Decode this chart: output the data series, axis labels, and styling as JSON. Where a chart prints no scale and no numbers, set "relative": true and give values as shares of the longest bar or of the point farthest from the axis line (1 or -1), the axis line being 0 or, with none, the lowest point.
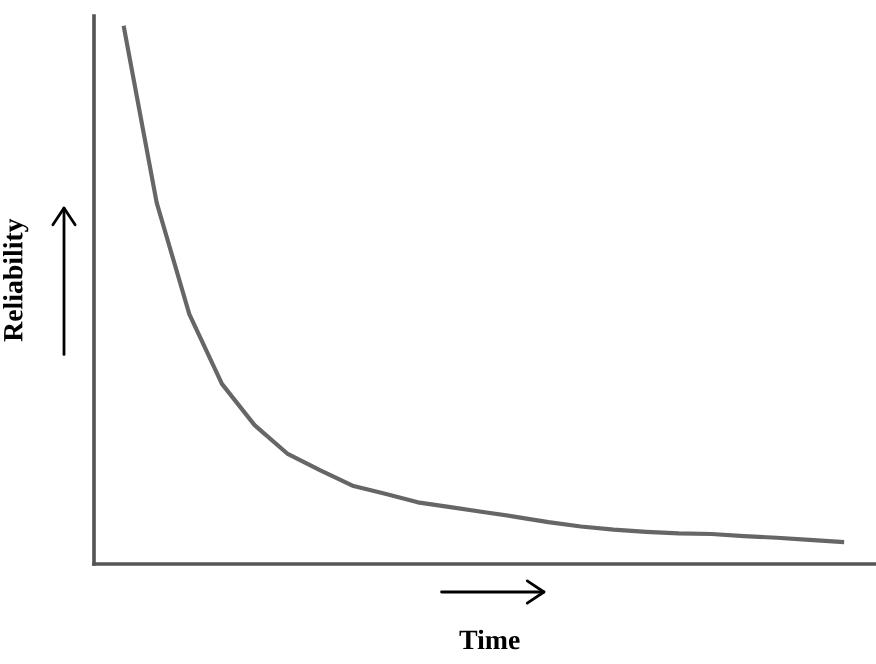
{
  "chart_data": {
    "type": "line",
    "xlabel": "Time",
    "ylabel": "Reliability",
    "relative": true,
    "categories": [
      null,
      null,
      null,
      null,
      null,
      null,
      null,
      null,
      null,
      null,
      null,
      null,
      null,
      null,
      null,
      null,
      null,
      null,
      null,
      null,
      null,
      null,
      null
    ],
    "series": [
      {
        "color": "#666666",
        "values": [
          1.0,
          0.674,
          0.466,
          0.336,
          0.259,
          0.206,
          0.175,
          0.146,
          0.131,
          0.115,
          0.106,
          0.097,
          0.088,
          0.078,
          0.07,
          0.064,
          0.06,
          0.057,
          0.056,
          0.052,
          0.049,
          0.045,
          0.041
        ]
      }
    ],
    "grid": false,
    "legend": false
  }
}
